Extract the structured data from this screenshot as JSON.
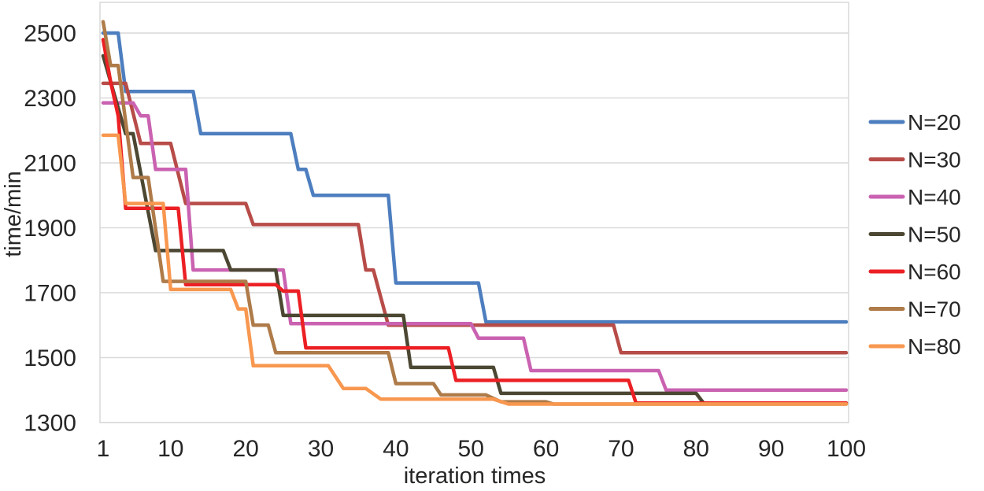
{
  "chart_data": {
    "type": "line",
    "title": "",
    "xlabel": "iteration times",
    "ylabel": "time/min",
    "x_ticks": [
      1,
      10,
      20,
      30,
      40,
      50,
      60,
      70,
      80,
      90,
      100
    ],
    "y_ticks": [
      1300,
      1500,
      1700,
      1900,
      2100,
      2300,
      2500
    ],
    "xlim": [
      1,
      100
    ],
    "ylim": [
      1300,
      2580
    ],
    "grid": "horizontal-gridlines",
    "legend_position": "right-outside",
    "style": "stepped convergence curves, straight segments between per-iteration points",
    "grid_color": "#d9d9d9",
    "text_color": "#262626",
    "series": [
      {
        "name": "N=20",
        "color": "#4d7ebf",
        "points": [
          [
            1,
            2500
          ],
          [
            3,
            2500
          ],
          [
            4,
            2320
          ],
          [
            13,
            2320
          ],
          [
            14,
            2190
          ],
          [
            26,
            2190
          ],
          [
            27,
            2080
          ],
          [
            28,
            2080
          ],
          [
            29,
            2000
          ],
          [
            39,
            2000
          ],
          [
            40,
            1730
          ],
          [
            51,
            1730
          ],
          [
            52,
            1610
          ],
          [
            100,
            1610
          ]
        ]
      },
      {
        "name": "N=30",
        "color": "#b74c48",
        "points": [
          [
            1,
            2345
          ],
          [
            4,
            2345
          ],
          [
            6,
            2160
          ],
          [
            10,
            2160
          ],
          [
            12,
            1975
          ],
          [
            20,
            1975
          ],
          [
            21,
            1910
          ],
          [
            35,
            1910
          ],
          [
            36,
            1770
          ],
          [
            37,
            1770
          ],
          [
            39,
            1600
          ],
          [
            69,
            1600
          ],
          [
            70,
            1515
          ],
          [
            100,
            1515
          ]
        ]
      },
      {
        "name": "N=40",
        "color": "#ca62b1",
        "points": [
          [
            1,
            2285
          ],
          [
            5,
            2285
          ],
          [
            6,
            2245
          ],
          [
            7,
            2245
          ],
          [
            8,
            2080
          ],
          [
            12,
            2080
          ],
          [
            13,
            1770
          ],
          [
            25,
            1770
          ],
          [
            26,
            1605
          ],
          [
            50,
            1605
          ],
          [
            51,
            1560
          ],
          [
            57,
            1560
          ],
          [
            58,
            1460
          ],
          [
            75,
            1460
          ],
          [
            76,
            1400
          ],
          [
            100,
            1400
          ]
        ]
      },
      {
        "name": "N=50",
        "color": "#4b4732",
        "points": [
          [
            1,
            2430
          ],
          [
            4,
            2190
          ],
          [
            5,
            2190
          ],
          [
            8,
            1830
          ],
          [
            17,
            1830
          ],
          [
            18,
            1770
          ],
          [
            24,
            1770
          ],
          [
            25,
            1630
          ],
          [
            41,
            1630
          ],
          [
            42,
            1470
          ],
          [
            53,
            1470
          ],
          [
            54,
            1390
          ],
          [
            80,
            1390
          ],
          [
            81,
            1360
          ],
          [
            100,
            1360
          ]
        ]
      },
      {
        "name": "N=60",
        "color": "#ec2024",
        "points": [
          [
            1,
            2480
          ],
          [
            2,
            2350
          ],
          [
            3,
            2245
          ],
          [
            4,
            1960
          ],
          [
            11,
            1960
          ],
          [
            12,
            1725
          ],
          [
            24,
            1725
          ],
          [
            25,
            1705
          ],
          [
            27,
            1705
          ],
          [
            28,
            1530
          ],
          [
            47,
            1530
          ],
          [
            48,
            1430
          ],
          [
            71,
            1430
          ],
          [
            72,
            1360
          ],
          [
            100,
            1360
          ]
        ]
      },
      {
        "name": "N=70",
        "color": "#ae7b49",
        "points": [
          [
            1,
            2535
          ],
          [
            2,
            2400
          ],
          [
            3,
            2400
          ],
          [
            5,
            2055
          ],
          [
            7,
            2055
          ],
          [
            9,
            1735
          ],
          [
            20,
            1735
          ],
          [
            21,
            1600
          ],
          [
            23,
            1600
          ],
          [
            24,
            1515
          ],
          [
            39,
            1515
          ],
          [
            40,
            1420
          ],
          [
            45,
            1420
          ],
          [
            46,
            1385
          ],
          [
            52,
            1385
          ],
          [
            54,
            1364
          ],
          [
            60,
            1364
          ],
          [
            61,
            1357
          ],
          [
            100,
            1357
          ]
        ]
      },
      {
        "name": "N=80",
        "color": "#f8974f",
        "points": [
          [
            1,
            2185
          ],
          [
            3,
            2185
          ],
          [
            4,
            1975
          ],
          [
            9,
            1975
          ],
          [
            10,
            1710
          ],
          [
            18,
            1710
          ],
          [
            19,
            1650
          ],
          [
            20,
            1650
          ],
          [
            21,
            1475
          ],
          [
            31,
            1475
          ],
          [
            33,
            1405
          ],
          [
            36,
            1405
          ],
          [
            38,
            1372
          ],
          [
            53,
            1372
          ],
          [
            55,
            1357
          ],
          [
            100,
            1357
          ]
        ]
      }
    ]
  }
}
